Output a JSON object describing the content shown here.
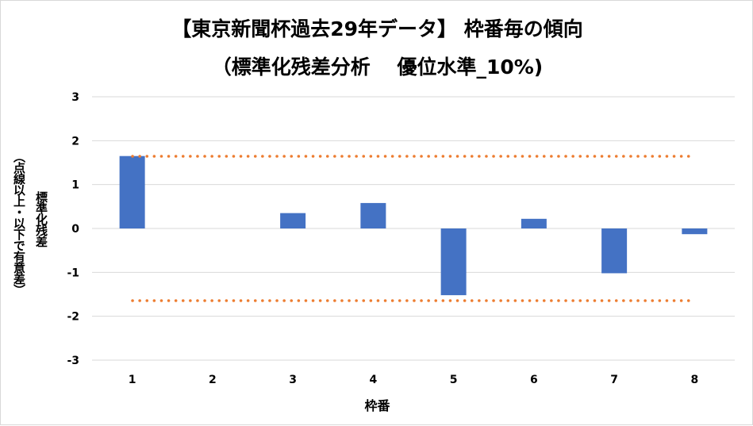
{
  "chart_data": {
    "type": "bar",
    "title": "【東京新聞杯過去29年データ】 枠番毎の傾向",
    "subtitle": "（標準化残差分析　 優位水準_10%)",
    "xlabel": "枠番",
    "ylabel_line1": "標準化残差",
    "ylabel_line2": "（点線以上・以下で有意差）",
    "categories": [
      "1",
      "2",
      "3",
      "4",
      "5",
      "6",
      "7",
      "8"
    ],
    "values": [
      1.65,
      0,
      0.35,
      0.58,
      -1.52,
      0.22,
      -1.02,
      -0.13
    ],
    "ylim": [
      -3,
      3
    ],
    "yticks": [
      "3",
      "2",
      "1",
      "0",
      "-1",
      "-2",
      "-3"
    ],
    "threshold_upper": 1.645,
    "threshold_lower": -1.645,
    "grid": true,
    "bar_color": "#4472c4",
    "threshold_color": "#ed7d31",
    "grid_color": "#d9d9d9"
  }
}
